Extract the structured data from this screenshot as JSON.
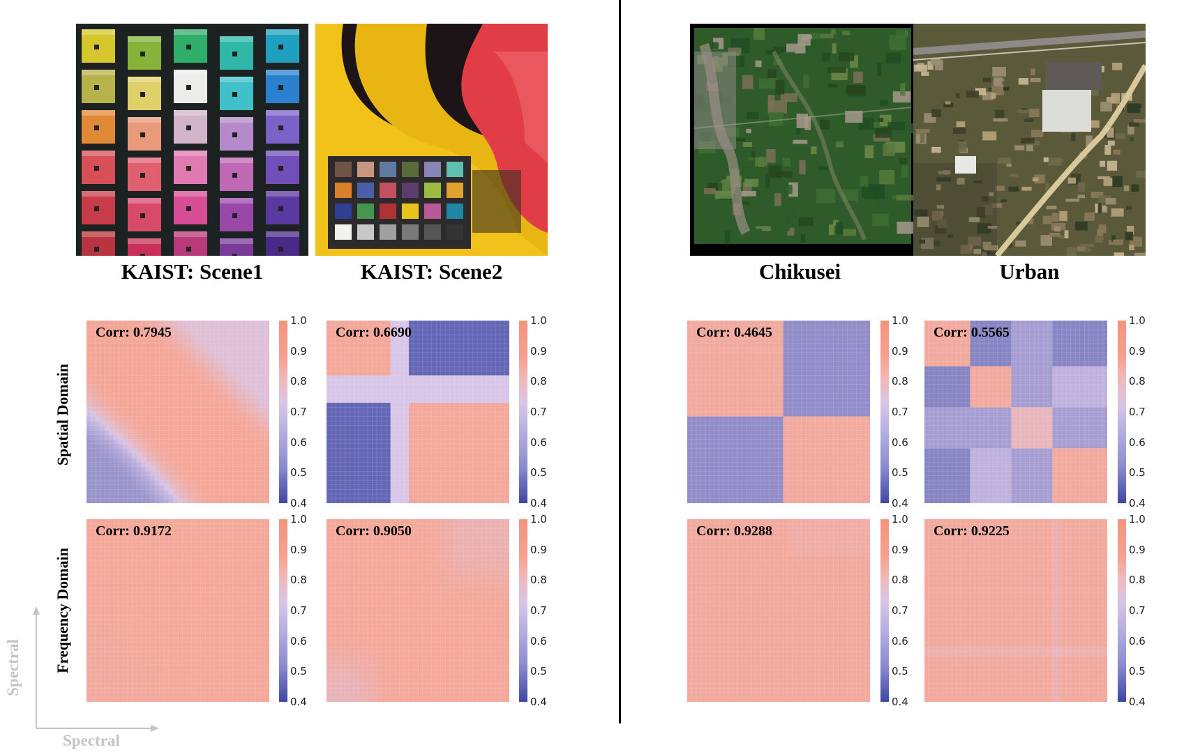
{
  "scenes": [
    {
      "id": "kaist1",
      "title": "KAIST: Scene1"
    },
    {
      "id": "kaist2",
      "title": "KAIST: Scene2"
    },
    {
      "id": "chikusei",
      "title": "Chikusei"
    },
    {
      "id": "urban",
      "title": "Urban"
    }
  ],
  "row_labels": {
    "spatial": "Spatial Domain",
    "frequency": "Frequency Domain"
  },
  "axis_labels": {
    "x": "Spectral",
    "y": "Spectral"
  },
  "colorbar": {
    "ticks": [
      "1.0",
      "0.9",
      "0.8",
      "0.7",
      "0.6",
      "0.5",
      "0.4"
    ],
    "min": 0.4,
    "max": 1.0,
    "colors": {
      "high": "#f5947f",
      "mid": "#d8c5e6",
      "low": "#3e47a4"
    }
  },
  "chart_data": [
    {
      "type": "heatmap",
      "scene": "KAIST: Scene1",
      "domain": "Spatial Domain",
      "corr_label": "Corr: 0.7945",
      "corr": 0.7945,
      "vmin": 0.4,
      "vmax": 1.0
    },
    {
      "type": "heatmap",
      "scene": "KAIST: Scene2",
      "domain": "Spatial Domain",
      "corr_label": "Corr: 0.6690",
      "corr": 0.669,
      "vmin": 0.4,
      "vmax": 1.0
    },
    {
      "type": "heatmap",
      "scene": "Chikusei",
      "domain": "Spatial Domain",
      "corr_label": "Corr: 0.4645",
      "corr": 0.4645,
      "vmin": 0.4,
      "vmax": 1.0
    },
    {
      "type": "heatmap",
      "scene": "Urban",
      "domain": "Spatial Domain",
      "corr_label": "Corr: 0.5565",
      "corr": 0.5565,
      "vmin": 0.4,
      "vmax": 1.0
    },
    {
      "type": "heatmap",
      "scene": "KAIST: Scene1",
      "domain": "Frequency Domain",
      "corr_label": "Corr: 0.9172",
      "corr": 0.9172,
      "vmin": 0.4,
      "vmax": 1.0
    },
    {
      "type": "heatmap",
      "scene": "KAIST: Scene2",
      "domain": "Frequency Domain",
      "corr_label": "Corr: 0.9050",
      "corr": 0.905,
      "vmin": 0.4,
      "vmax": 1.0
    },
    {
      "type": "heatmap",
      "scene": "Chikusei",
      "domain": "Frequency Domain",
      "corr_label": "Corr: 0.9288",
      "corr": 0.9288,
      "vmin": 0.4,
      "vmax": 1.0
    },
    {
      "type": "heatmap",
      "scene": "Urban",
      "domain": "Frequency Domain",
      "corr_label": "Corr: 0.9225",
      "corr": 0.9225,
      "vmin": 0.4,
      "vmax": 1.0
    }
  ]
}
